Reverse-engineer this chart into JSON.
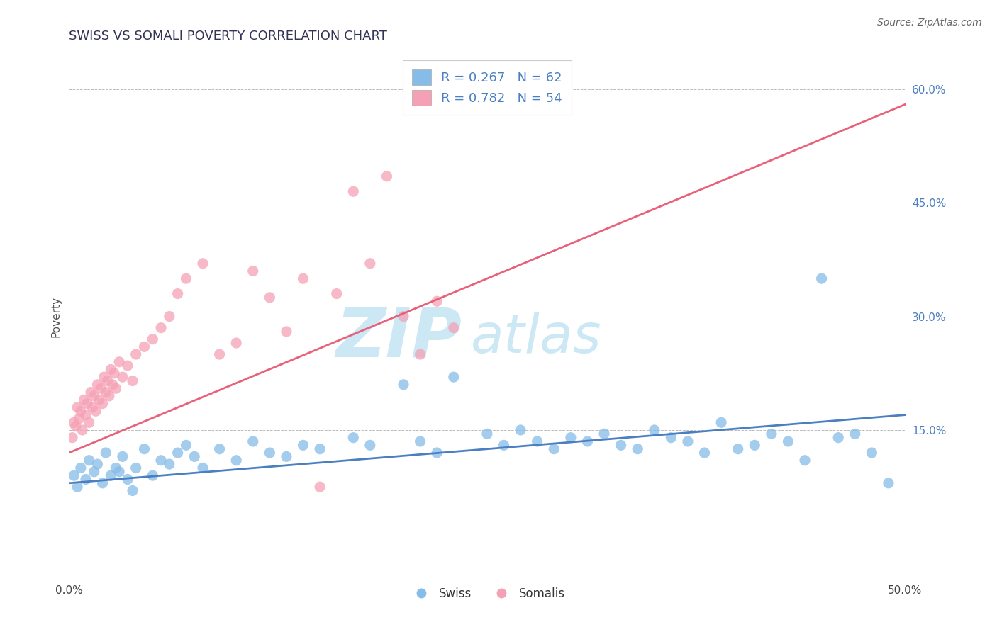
{
  "title": "SWISS VS SOMALI POVERTY CORRELATION CHART",
  "source": "Source: ZipAtlas.com",
  "ylabel": "Poverty",
  "xlim": [
    0.0,
    50.0
  ],
  "ylim": [
    -5.0,
    65.0
  ],
  "yticks": [
    15.0,
    30.0,
    45.0,
    60.0
  ],
  "ytick_labels": [
    "15.0%",
    "30.0%",
    "45.0%",
    "60.0%"
  ],
  "xtick_labels": [
    "0.0%",
    "50.0%"
  ],
  "swiss_color": "#85bce8",
  "somali_color": "#f5a0b5",
  "swiss_line_color": "#4a7fc1",
  "somali_line_color": "#e8607a",
  "swiss_R": 0.267,
  "swiss_N": 62,
  "somali_R": 0.782,
  "somali_N": 54,
  "swiss_line": [
    8.0,
    17.0
  ],
  "somali_line": [
    12.0,
    58.0
  ],
  "swiss_scatter_x": [
    0.3,
    0.5,
    0.7,
    1.0,
    1.2,
    1.5,
    1.7,
    2.0,
    2.2,
    2.5,
    2.8,
    3.0,
    3.2,
    3.5,
    3.8,
    4.0,
    4.5,
    5.0,
    5.5,
    6.0,
    6.5,
    7.0,
    7.5,
    8.0,
    9.0,
    10.0,
    11.0,
    12.0,
    13.0,
    14.0,
    15.0,
    17.0,
    18.0,
    20.0,
    21.0,
    22.0,
    23.0,
    25.0,
    26.0,
    27.0,
    28.0,
    29.0,
    30.0,
    31.0,
    32.0,
    33.0,
    34.0,
    35.0,
    36.0,
    37.0,
    38.0,
    39.0,
    40.0,
    41.0,
    42.0,
    43.0,
    44.0,
    45.0,
    46.0,
    47.0,
    48.0,
    49.0
  ],
  "swiss_scatter_y": [
    9.0,
    7.5,
    10.0,
    8.5,
    11.0,
    9.5,
    10.5,
    8.0,
    12.0,
    9.0,
    10.0,
    9.5,
    11.5,
    8.5,
    7.0,
    10.0,
    12.5,
    9.0,
    11.0,
    10.5,
    12.0,
    13.0,
    11.5,
    10.0,
    12.5,
    11.0,
    13.5,
    12.0,
    11.5,
    13.0,
    12.5,
    14.0,
    13.0,
    21.0,
    13.5,
    12.0,
    22.0,
    14.5,
    13.0,
    15.0,
    13.5,
    12.5,
    14.0,
    13.5,
    14.5,
    13.0,
    12.5,
    15.0,
    14.0,
    13.5,
    12.0,
    16.0,
    12.5,
    13.0,
    14.5,
    13.5,
    11.0,
    35.0,
    14.0,
    14.5,
    12.0,
    8.0
  ],
  "somali_scatter_x": [
    0.2,
    0.3,
    0.4,
    0.5,
    0.6,
    0.7,
    0.8,
    0.9,
    1.0,
    1.1,
    1.2,
    1.3,
    1.4,
    1.5,
    1.6,
    1.7,
    1.8,
    1.9,
    2.0,
    2.1,
    2.2,
    2.3,
    2.4,
    2.5,
    2.6,
    2.7,
    2.8,
    3.0,
    3.2,
    3.5,
    3.8,
    4.0,
    4.5,
    5.0,
    5.5,
    6.0,
    6.5,
    7.0,
    8.0,
    9.0,
    10.0,
    11.0,
    12.0,
    13.0,
    14.0,
    15.0,
    16.0,
    17.0,
    18.0,
    19.0,
    20.0,
    21.0,
    22.0,
    23.0
  ],
  "somali_scatter_y": [
    14.0,
    16.0,
    15.5,
    18.0,
    16.5,
    17.5,
    15.0,
    19.0,
    17.0,
    18.5,
    16.0,
    20.0,
    18.0,
    19.5,
    17.5,
    21.0,
    19.0,
    20.5,
    18.5,
    22.0,
    20.0,
    21.5,
    19.5,
    23.0,
    21.0,
    22.5,
    20.5,
    24.0,
    22.0,
    23.5,
    21.5,
    25.0,
    26.0,
    27.0,
    28.5,
    30.0,
    33.0,
    35.0,
    37.0,
    25.0,
    26.5,
    36.0,
    32.5,
    28.0,
    35.0,
    7.5,
    33.0,
    46.5,
    37.0,
    48.5,
    30.0,
    25.0,
    32.0,
    28.5
  ],
  "background_color": "#ffffff",
  "grid_color": "#bbbbbb",
  "watermark_zip": "ZIP",
  "watermark_atlas": "atlas",
  "watermark_color": "#cce8f5",
  "title_fontsize": 13,
  "axis_label_fontsize": 11,
  "tick_fontsize": 11,
  "legend_fontsize": 13
}
